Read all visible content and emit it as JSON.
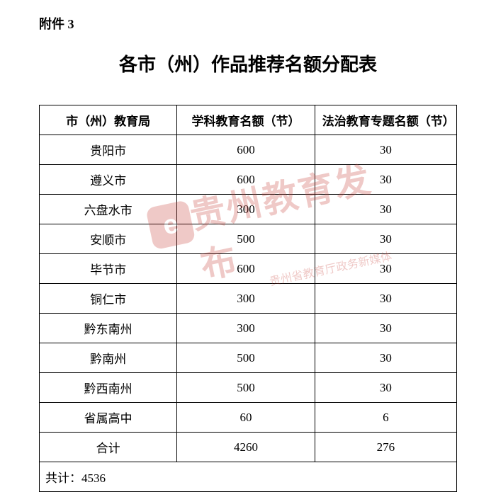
{
  "attachment": "附件 3",
  "title": "各市（州）作品推荐名额分配表",
  "table": {
    "columns": [
      "市（州）教育局",
      "学科教育名额（节）",
      "法治教育专题名额（节）"
    ],
    "rows": [
      [
        "贵阳市",
        "600",
        "30"
      ],
      [
        "遵义市",
        "600",
        "30"
      ],
      [
        "六盘水市",
        "300",
        "30"
      ],
      [
        "安顺市",
        "500",
        "30"
      ],
      [
        "毕节市",
        "600",
        "30"
      ],
      [
        "铜仁市",
        "300",
        "30"
      ],
      [
        "黔东南州",
        "300",
        "30"
      ],
      [
        "黔南州",
        "500",
        "30"
      ],
      [
        "黔西南州",
        "500",
        "30"
      ],
      [
        "省属高中",
        "60",
        "6"
      ],
      [
        "合计",
        "4260",
        "276"
      ]
    ],
    "footer": "共计：4536"
  },
  "watermark": {
    "main": "贵州教育发布",
    "sub": "贵州省教育厅政务新媒体",
    "logo_bg": "#c8423a"
  },
  "styles": {
    "background": "#ffffff",
    "text_color": "#000000",
    "border_color": "#000000",
    "title_fontsize": 26,
    "table_fontsize": 17,
    "watermark_color": "#c8423a"
  }
}
